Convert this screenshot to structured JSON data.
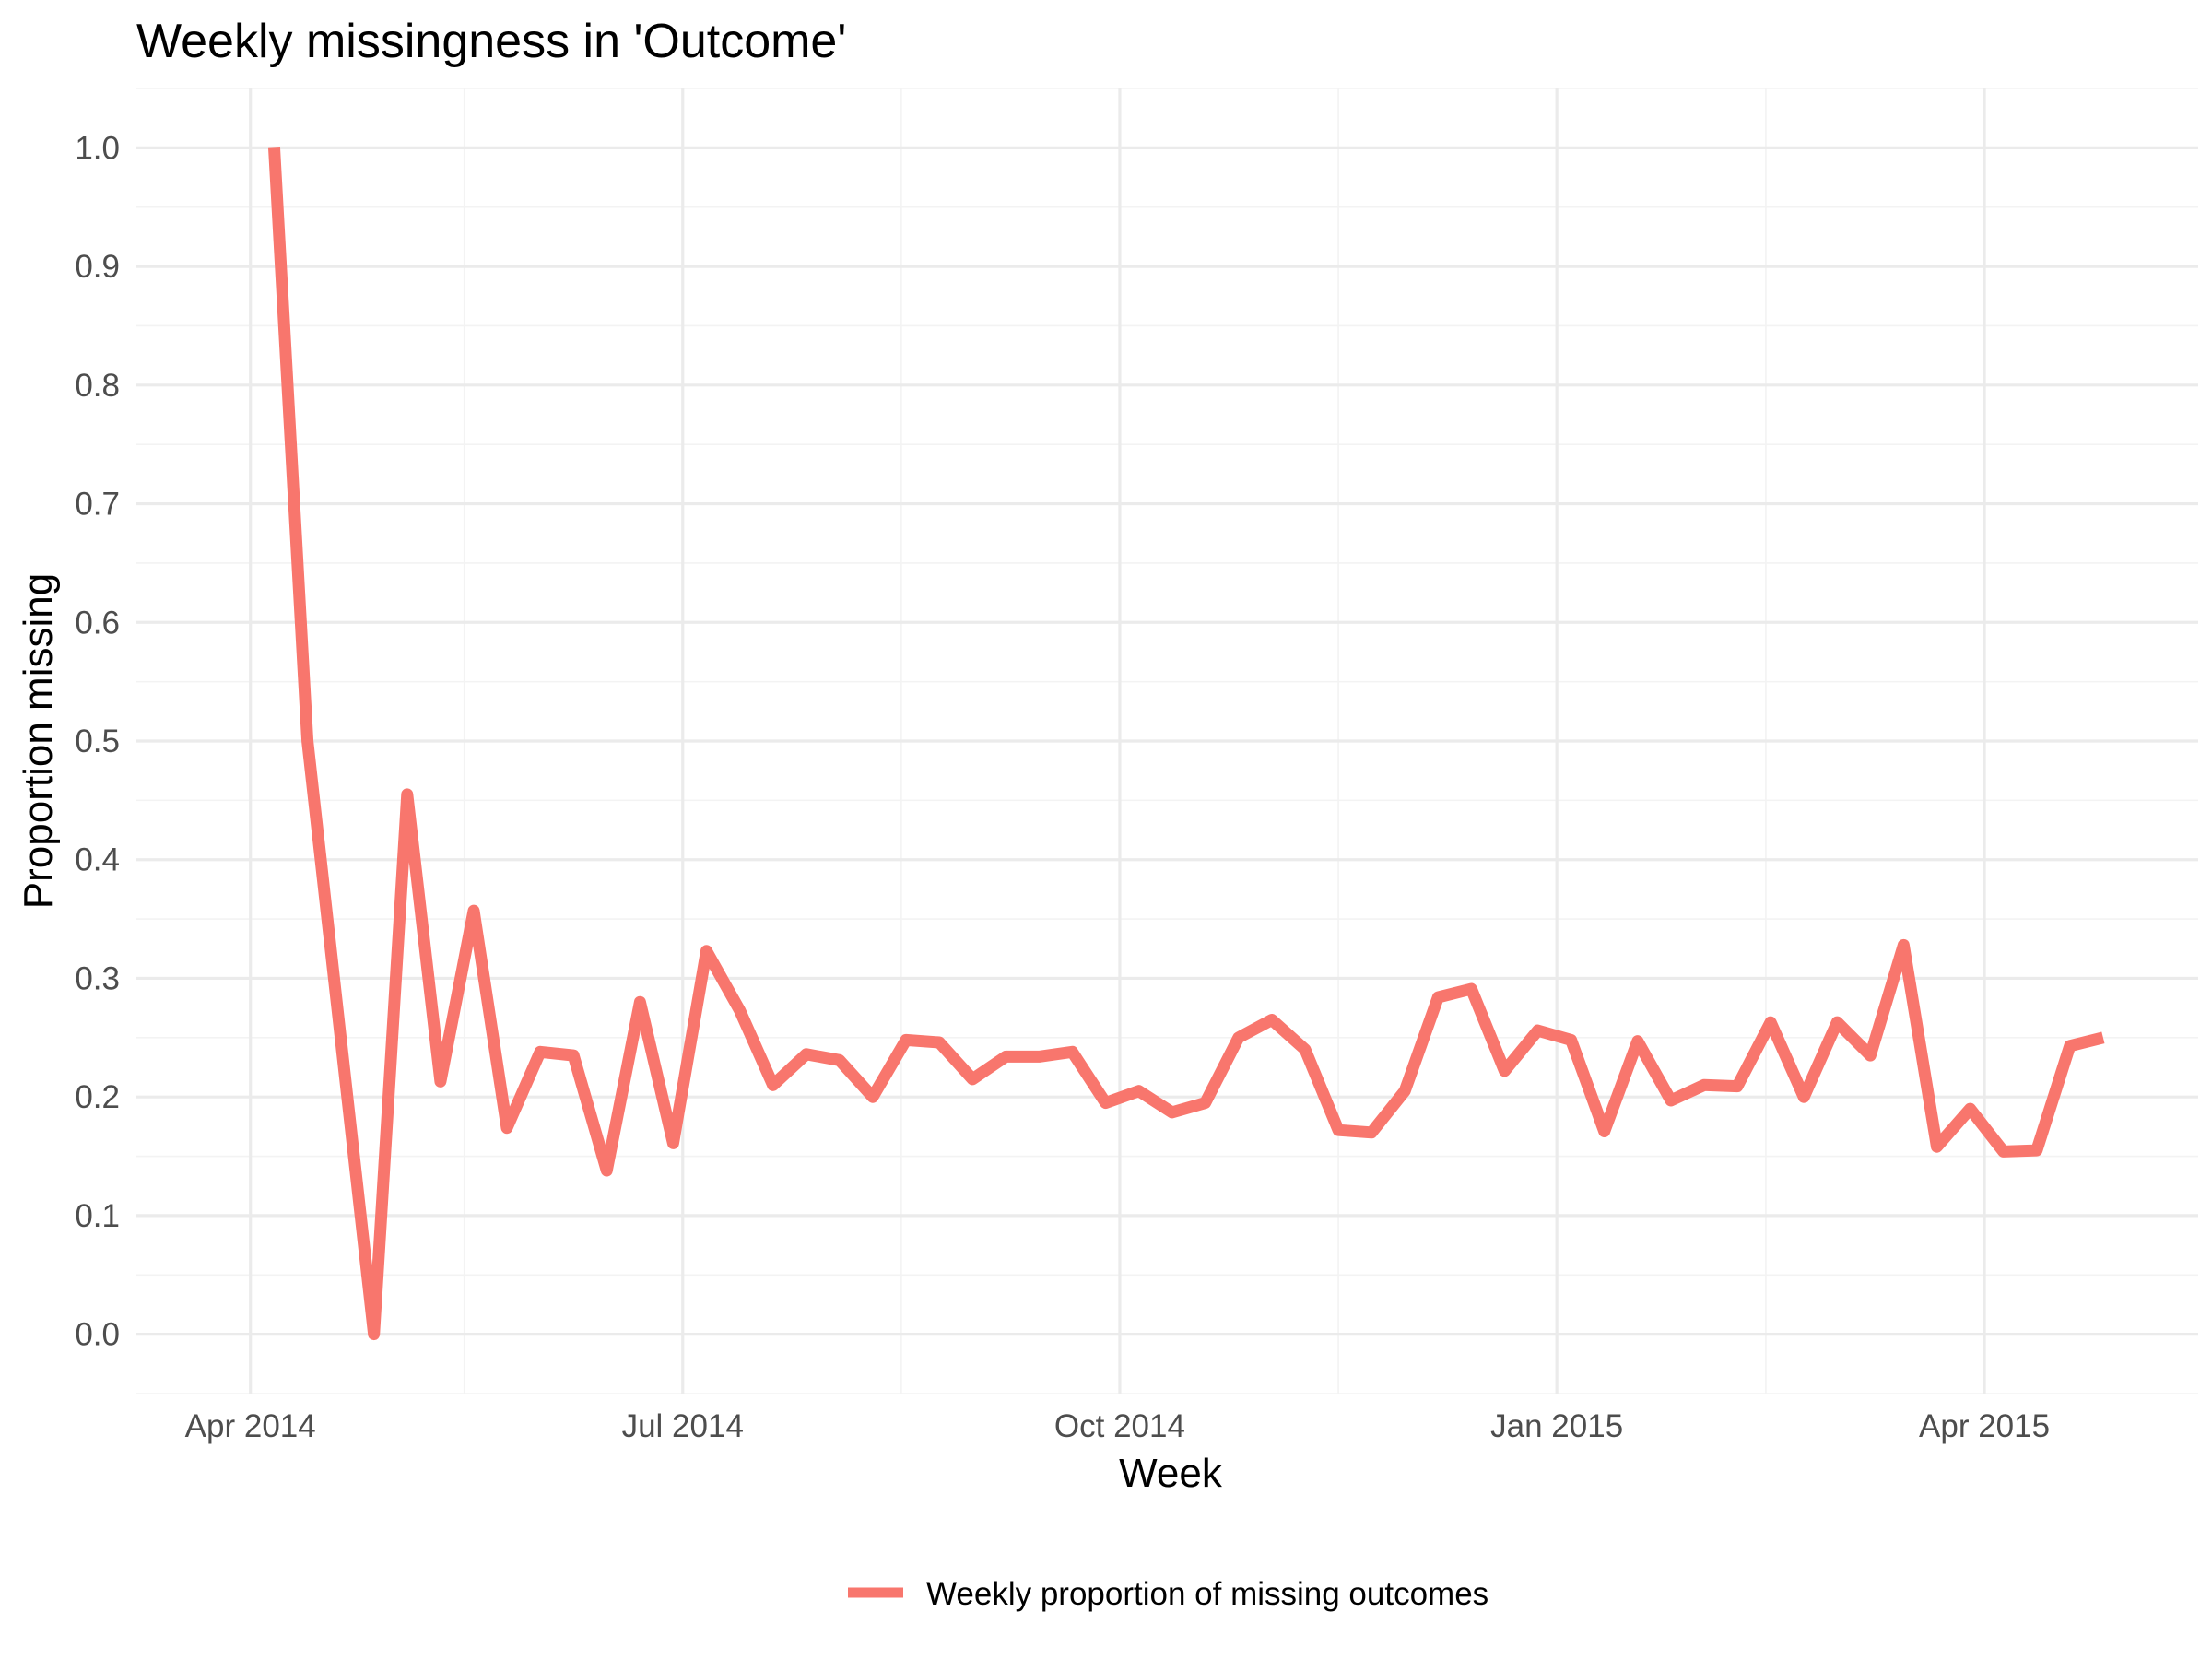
{
  "chart_data": {
    "type": "line",
    "title": "Weekly missingness in 'Outcome'",
    "xlabel": "Week",
    "ylabel": "Proportion missing",
    "x_type": "date",
    "xlim": [
      "2014-03-08",
      "2015-05-16"
    ],
    "ylim": [
      -0.05,
      1.05
    ],
    "y_ticks": [
      0.0,
      0.1,
      0.2,
      0.3,
      0.4,
      0.5,
      0.6,
      0.7,
      0.8,
      0.9,
      1.0
    ],
    "y_tick_labels": [
      "0.0",
      "0.1",
      "0.2",
      "0.3",
      "0.4",
      "0.5",
      "0.6",
      "0.7",
      "0.8",
      "0.9",
      "1.0"
    ],
    "x_ticks": [
      "2014-04-01",
      "2014-07-01",
      "2014-10-01",
      "2015-01-01",
      "2015-04-01"
    ],
    "x_tick_labels": [
      "Apr 2014",
      "Jul 2014",
      "Oct 2014",
      "Jan 2015",
      "Apr 2015"
    ],
    "x_minor_ticks": [
      "2014-05-16",
      "2014-08-16",
      "2014-11-16",
      "2015-02-14"
    ],
    "grid": true,
    "legend_position": "bottom",
    "series": [
      {
        "name": "Weekly proportion of missing outcomes",
        "color": "#f8766d",
        "x": [
          "2014-04-06",
          "2014-04-13",
          "2014-04-20",
          "2014-04-27",
          "2014-05-04",
          "2014-05-11",
          "2014-05-18",
          "2014-05-25",
          "2014-06-01",
          "2014-06-08",
          "2014-06-15",
          "2014-06-22",
          "2014-06-29",
          "2014-07-06",
          "2014-07-13",
          "2014-07-20",
          "2014-07-27",
          "2014-08-03",
          "2014-08-10",
          "2014-08-17",
          "2014-08-24",
          "2014-08-31",
          "2014-09-07",
          "2014-09-14",
          "2014-09-21",
          "2014-09-28",
          "2014-10-05",
          "2014-10-12",
          "2014-10-19",
          "2014-10-26",
          "2014-11-02",
          "2014-11-09",
          "2014-11-16",
          "2014-11-23",
          "2014-11-30",
          "2014-12-07",
          "2014-12-14",
          "2014-12-21",
          "2014-12-28",
          "2015-01-04",
          "2015-01-11",
          "2015-01-18",
          "2015-01-25",
          "2015-02-01",
          "2015-02-08",
          "2015-02-15",
          "2015-02-22",
          "2015-03-01",
          "2015-03-08",
          "2015-03-15",
          "2015-03-22",
          "2015-03-29",
          "2015-04-05",
          "2015-04-12",
          "2015-04-19",
          "2015-04-26"
        ],
        "y": [
          1.0,
          0.5,
          0.25,
          0.0,
          0.455,
          0.213,
          0.357,
          0.174,
          0.238,
          0.235,
          0.138,
          0.28,
          0.161,
          0.323,
          0.273,
          0.21,
          0.236,
          0.231,
          0.2,
          0.248,
          0.246,
          0.215,
          0.234,
          0.234,
          0.238,
          0.195,
          0.205,
          0.187,
          0.195,
          0.25,
          0.265,
          0.24,
          0.172,
          0.17,
          0.205,
          0.284,
          0.291,
          0.222,
          0.256,
          0.248,
          0.171,
          0.247,
          0.197,
          0.21,
          0.209,
          0.263,
          0.2,
          0.263,
          0.235,
          0.328,
          0.158,
          0.19,
          0.154,
          0.155,
          0.243,
          0.25
        ]
      }
    ]
  }
}
